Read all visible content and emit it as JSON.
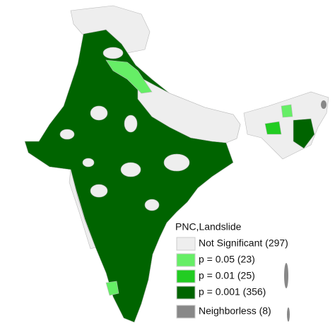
{
  "legend": {
    "title": "PNC,Landslide",
    "items": [
      {
        "label": "Not Significant (297)",
        "color": "#eeeeee"
      },
      {
        "label": "p = 0.05 (23)",
        "color": "#66ee66"
      },
      {
        "label": "p = 0.01 (25)",
        "color": "#22cc22"
      },
      {
        "label": "p = 0.001 (356)",
        "color": "#006400"
      },
      {
        "label": "Neighborless (8)",
        "color": "#888888"
      }
    ]
  }
}
